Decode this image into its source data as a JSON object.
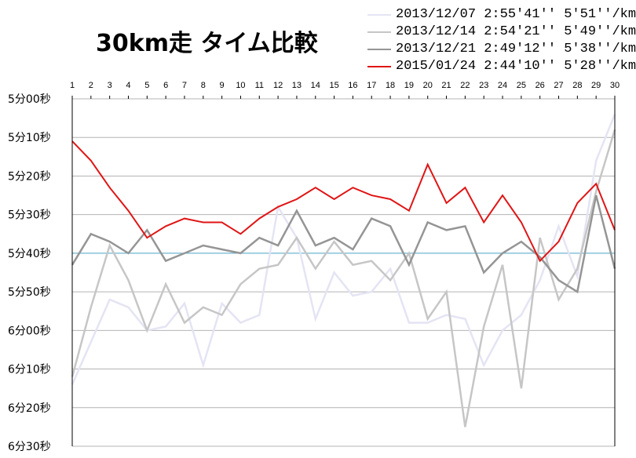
{
  "chart_data": {
    "type": "line",
    "title": "30km走 タイム比較",
    "xlabel": "",
    "ylabel": "",
    "x": [
      1,
      2,
      3,
      4,
      5,
      6,
      7,
      8,
      9,
      10,
      11,
      12,
      13,
      14,
      15,
      16,
      17,
      18,
      19,
      20,
      21,
      22,
      23,
      24,
      25,
      26,
      27,
      28,
      29,
      30
    ],
    "x_ticks": [
      "1",
      "2",
      "3",
      "4",
      "5",
      "6",
      "7",
      "8",
      "9",
      "10",
      "11",
      "12",
      "13",
      "14",
      "15",
      "16",
      "17",
      "18",
      "19",
      "20",
      "21",
      "22",
      "23",
      "24",
      "25",
      "26",
      "27",
      "28",
      "29",
      "30"
    ],
    "y_unit": "seconds per km",
    "ylim": [
      300,
      390
    ],
    "y_inverted": true,
    "y_ticks": [
      {
        "value": 300,
        "label": "5分00秒"
      },
      {
        "value": 310,
        "label": "5分10秒"
      },
      {
        "value": 320,
        "label": "5分20秒"
      },
      {
        "value": 330,
        "label": "5分30秒"
      },
      {
        "value": 340,
        "label": "5分40秒"
      },
      {
        "value": 350,
        "label": "5分50秒"
      },
      {
        "value": 360,
        "label": "6分00秒"
      },
      {
        "value": 370,
        "label": "6分10秒"
      },
      {
        "value": 380,
        "label": "6分20秒"
      },
      {
        "value": 390,
        "label": "6分30秒"
      }
    ],
    "reference_line": {
      "value": 340,
      "color": "#4aa3c8"
    },
    "grid": true,
    "legend_position": "top-right",
    "series": [
      {
        "name": "2013/12/07  2:55'41''  5'51''/km",
        "color": "#e4e4f4",
        "values": [
          374,
          363,
          352,
          354,
          360,
          359,
          353,
          369,
          353,
          358,
          356,
          328,
          336,
          357,
          345,
          351,
          350,
          344,
          358,
          358,
          356,
          357,
          369,
          360,
          356,
          347,
          333,
          346,
          316,
          304
        ]
      },
      {
        "name": "2013/12/14  2:54'21''  5'49''/km",
        "color": "#c6c6c6",
        "values": [
          372,
          354,
          338,
          347,
          360,
          348,
          358,
          354,
          356,
          348,
          344,
          343,
          336,
          344,
          337,
          343,
          342,
          347,
          340,
          357,
          350,
          385,
          359,
          343,
          375,
          336,
          352,
          344,
          324,
          308
        ]
      },
      {
        "name": "2013/12/21  2:49'12''  5'38''/km",
        "color": "#959595",
        "values": [
          343,
          335,
          337,
          340,
          334,
          342,
          340,
          338,
          339,
          340,
          336,
          338,
          329,
          338,
          336,
          339,
          331,
          333,
          343,
          332,
          334,
          333,
          345,
          340,
          337,
          341,
          347,
          350,
          325,
          344
        ]
      },
      {
        "name": "2015/01/24  2:44'10''  5'28''/km",
        "color": "#e01515",
        "values": [
          311,
          316,
          323,
          329,
          336,
          333,
          331,
          332,
          332,
          335,
          331,
          328,
          326,
          323,
          326,
          323,
          325,
          326,
          329,
          317,
          327,
          323,
          332,
          325,
          332,
          342,
          337,
          327,
          322,
          334
        ]
      }
    ]
  }
}
